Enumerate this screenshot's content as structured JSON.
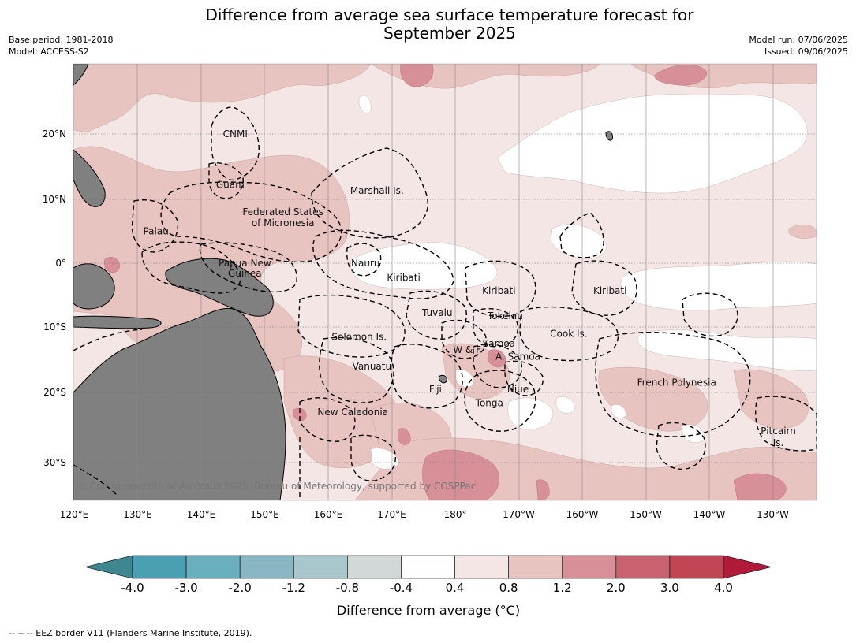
{
  "title_line1": "Difference from average sea surface temperature forecast for",
  "title_line2": "September 2025",
  "left_meta": {
    "base_period": "Base period: 1981-2018",
    "model": "Model: ACCESS-S2"
  },
  "right_meta": {
    "model_run": "Model run: 07/06/2025",
    "issued": "Issued: 09/06/2025"
  },
  "map": {
    "lon_labels": [
      "120°E",
      "130°E",
      "140°E",
      "150°E",
      "160°E",
      "170°E",
      "180°",
      "170°W",
      "160°W",
      "150°W",
      "140°W",
      "130°W"
    ],
    "lat_labels": [
      "20°N",
      "10°N",
      "0°",
      "10°S",
      "20°S",
      "30°S"
    ],
    "copyright": "© Commonwealth of Australia 2025, Bureau of Meteorology, supported by COSPPac",
    "places": [
      {
        "name": "CNMI",
        "lon": 145.5,
        "lat": 20.0
      },
      {
        "name": "Guam",
        "lon": 144.7,
        "lat": 12.2
      },
      {
        "name": "Marshall Is.",
        "lon": 167.8,
        "lat": 11.3
      },
      {
        "name": "Federated States",
        "lon": 153.0,
        "lat": 8.0
      },
      {
        "name": "of Micronesia",
        "lon": 153.0,
        "lat": 6.3
      },
      {
        "name": "Palau",
        "lon": 133.0,
        "lat": 5.0
      },
      {
        "name": "Papua New",
        "lon": 147.0,
        "lat": 0.0
      },
      {
        "name": "Guinea",
        "lon": 147.0,
        "lat": -1.6
      },
      {
        "name": "Nauru",
        "lon": 166.0,
        "lat": 0.0
      },
      {
        "name": "Kiribati",
        "lon": 172.0,
        "lat": -2.3
      },
      {
        "name": "Kiribati",
        "lon": -173.0,
        "lat": -4.3
      },
      {
        "name": "Kiribati",
        "lon": -155.5,
        "lat": -4.3
      },
      {
        "name": "Tuvalu",
        "lon": 177.3,
        "lat": -7.8
      },
      {
        "name": "Tokelau",
        "lon": -172.0,
        "lat": -8.3
      },
      {
        "name": "Cook Is.",
        "lon": -162.0,
        "lat": -11.0
      },
      {
        "name": "Solomon Is.",
        "lon": 165.0,
        "lat": -11.5
      },
      {
        "name": "W & F",
        "lon": -178.0,
        "lat": -13.5
      },
      {
        "name": "Samoa",
        "lon": -173.0,
        "lat": -12.5
      },
      {
        "name": "A. Samoa",
        "lon": -170.0,
        "lat": -14.5
      },
      {
        "name": "Vanuatu",
        "lon": 167.0,
        "lat": -16.0
      },
      {
        "name": "Fiji",
        "lon": 177.0,
        "lat": -19.5
      },
      {
        "name": "Niue",
        "lon": -170.0,
        "lat": -19.5
      },
      {
        "name": "French Polynesia",
        "lon": -145.0,
        "lat": -18.5
      },
      {
        "name": "Tonga",
        "lon": -174.5,
        "lat": -21.5
      },
      {
        "name": "New Caledonia",
        "lon": 164.0,
        "lat": -22.8
      },
      {
        "name": "Pitcairn",
        "lon": -129.0,
        "lat": -25.5
      },
      {
        "name": "Is.",
        "lon": -129.0,
        "lat": -27.2
      }
    ]
  },
  "colorbar": {
    "title": "Difference from average (°C)",
    "ticks": [
      "-4.0",
      "-3.0",
      "-2.0",
      "-1.2",
      "-0.8",
      "-0.4",
      "0.4",
      "0.8",
      "1.2",
      "2.0",
      "3.0",
      "4.0"
    ],
    "colors": [
      "#3f8790",
      "#4aa0b2",
      "#6aafbe",
      "#88b6c2",
      "#a7c7cc",
      "#d2d7d8",
      "#ffffff",
      "#f4e6e5",
      "#e8c4c1",
      "#d78f98",
      "#c96270",
      "#c04655",
      "#b11a3b"
    ]
  },
  "footnote": "--  --  -- EEZ border V11 (Flanders Marine Institute, 2019)."
}
